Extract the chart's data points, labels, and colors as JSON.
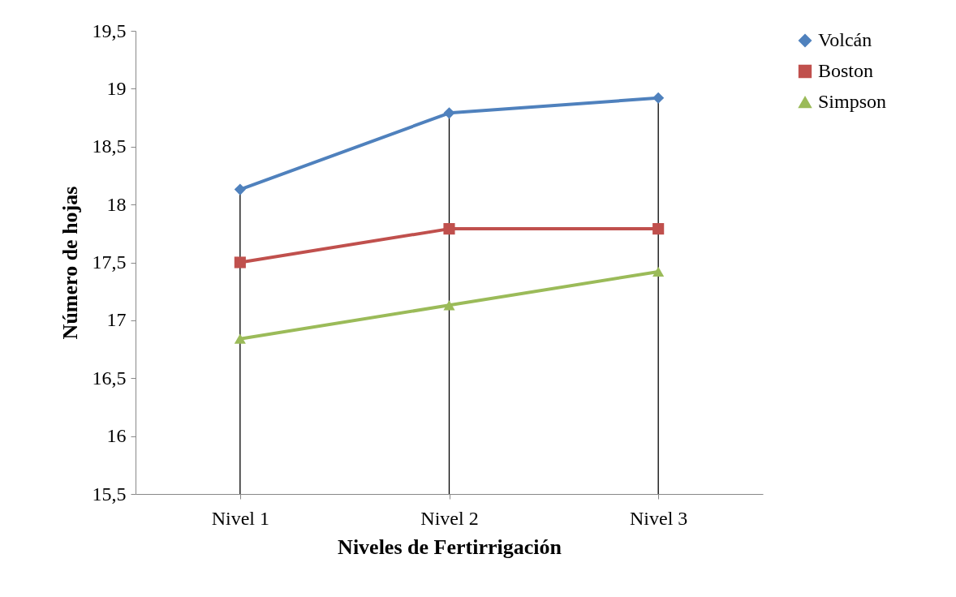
{
  "chart_data": {
    "type": "line",
    "xlabel": "Niveles de Fertirrigación",
    "ylabel": "Número de hojas",
    "categories": [
      "Nivel 1",
      "Nivel 2",
      "Nivel 3"
    ],
    "series": [
      {
        "name": "Volcán",
        "color": "#4f81bd",
        "marker": "diamond",
        "values": [
          18.13,
          18.79,
          18.92
        ]
      },
      {
        "name": "Boston",
        "color": "#c0504d",
        "marker": "square",
        "values": [
          17.5,
          17.79,
          17.79
        ]
      },
      {
        "name": "Simpson",
        "color": "#9bbb59",
        "marker": "triangle",
        "values": [
          16.84,
          17.13,
          17.42
        ]
      }
    ],
    "ylim": [
      15.5,
      19.5
    ],
    "yticks": [
      {
        "value": 15.5,
        "label": "15,5"
      },
      16,
      {
        "value": 16.5,
        "label": "16,5"
      },
      17,
      {
        "value": 17.5,
        "label": "17,5"
      },
      18,
      {
        "value": 18.5,
        "label": "18,5"
      },
      19,
      {
        "value": 19.5,
        "label": "19,5"
      }
    ],
    "ref_lines": [
      {
        "axis": "x",
        "value": "Nivel 1",
        "color": "#000000"
      },
      {
        "axis": "x",
        "value": "Nivel 2",
        "color": "#000000"
      },
      {
        "axis": "x",
        "value": "Nivel 3",
        "color": "#000000"
      }
    ],
    "grid": false,
    "legend": "right",
    "line_style": "solid"
  }
}
